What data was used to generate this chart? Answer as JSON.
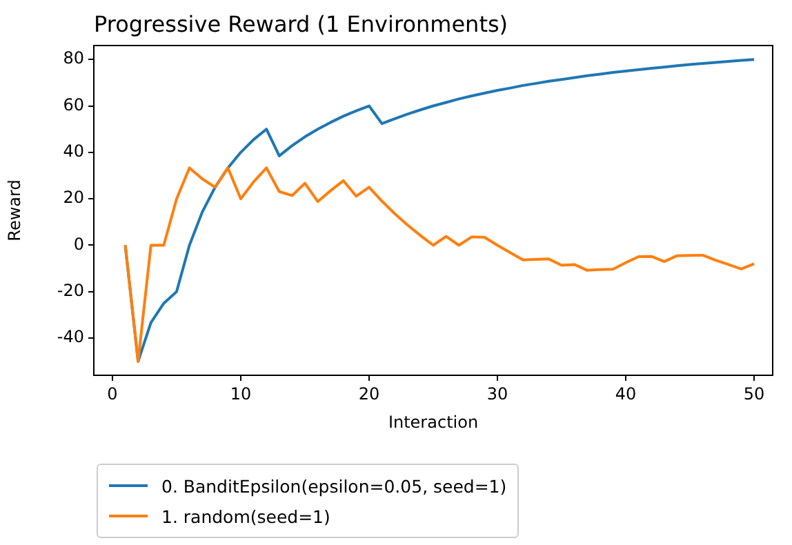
{
  "chart_data": {
    "type": "line",
    "title": "Progressive Reward (1 Environments)",
    "xlabel": "Interaction",
    "ylabel": "Reward",
    "x": [
      1,
      2,
      3,
      4,
      5,
      6,
      7,
      8,
      9,
      10,
      11,
      12,
      13,
      14,
      15,
      16,
      17,
      18,
      19,
      20,
      21,
      22,
      23,
      24,
      25,
      26,
      27,
      28,
      29,
      30,
      31,
      32,
      33,
      34,
      35,
      36,
      37,
      38,
      39,
      40,
      41,
      42,
      43,
      44,
      45,
      46,
      47,
      48,
      49,
      50
    ],
    "series": [
      {
        "name": "0. BanditEpsilon(epsilon=0.05, seed=1)",
        "color": "#1f77b4",
        "values": [
          0,
          -50,
          -33.3,
          -25,
          -20,
          0,
          14.3,
          25,
          33.3,
          40,
          45.5,
          50,
          38.5,
          42.9,
          46.7,
          50,
          52.9,
          55.6,
          57.9,
          60,
          52.4,
          54.5,
          56.5,
          58.3,
          60,
          61.5,
          63,
          64.3,
          65.5,
          66.7,
          67.7,
          68.8,
          69.7,
          70.6,
          71.4,
          72.2,
          73,
          73.7,
          74.4,
          75,
          75.6,
          76.2,
          76.7,
          77.3,
          77.8,
          78.3,
          78.7,
          79.2,
          79.6,
          80
        ]
      },
      {
        "name": "1. random(seed=1)",
        "color": "#ff7f0e",
        "values": [
          0,
          -50,
          0,
          0,
          20,
          33.3,
          28.6,
          25,
          33.3,
          20,
          27.3,
          33.3,
          23.1,
          21.4,
          26.7,
          18.8,
          23.5,
          27.8,
          21.1,
          25,
          19,
          13.6,
          8.7,
          4.2,
          0,
          3.8,
          0,
          3.6,
          3.4,
          0,
          -3.2,
          -6.3,
          -6.1,
          -5.9,
          -8.6,
          -8.3,
          -10.8,
          -10.5,
          -10.3,
          -7.5,
          -4.9,
          -4.8,
          -7,
          -4.5,
          -4.4,
          -4.3,
          -6.4,
          -8.3,
          -10.2,
          -8
        ]
      }
    ],
    "xlim": [
      -1.45,
      51.45
    ],
    "xticks": [
      0,
      10,
      20,
      30,
      40,
      50
    ],
    "ylim": [
      -56,
      86
    ],
    "yticks": [
      -40,
      -20,
      0,
      20,
      40,
      60,
      80
    ],
    "grid": false,
    "legend": "bottom left",
    "marker": "none",
    "line_style": "solid"
  }
}
